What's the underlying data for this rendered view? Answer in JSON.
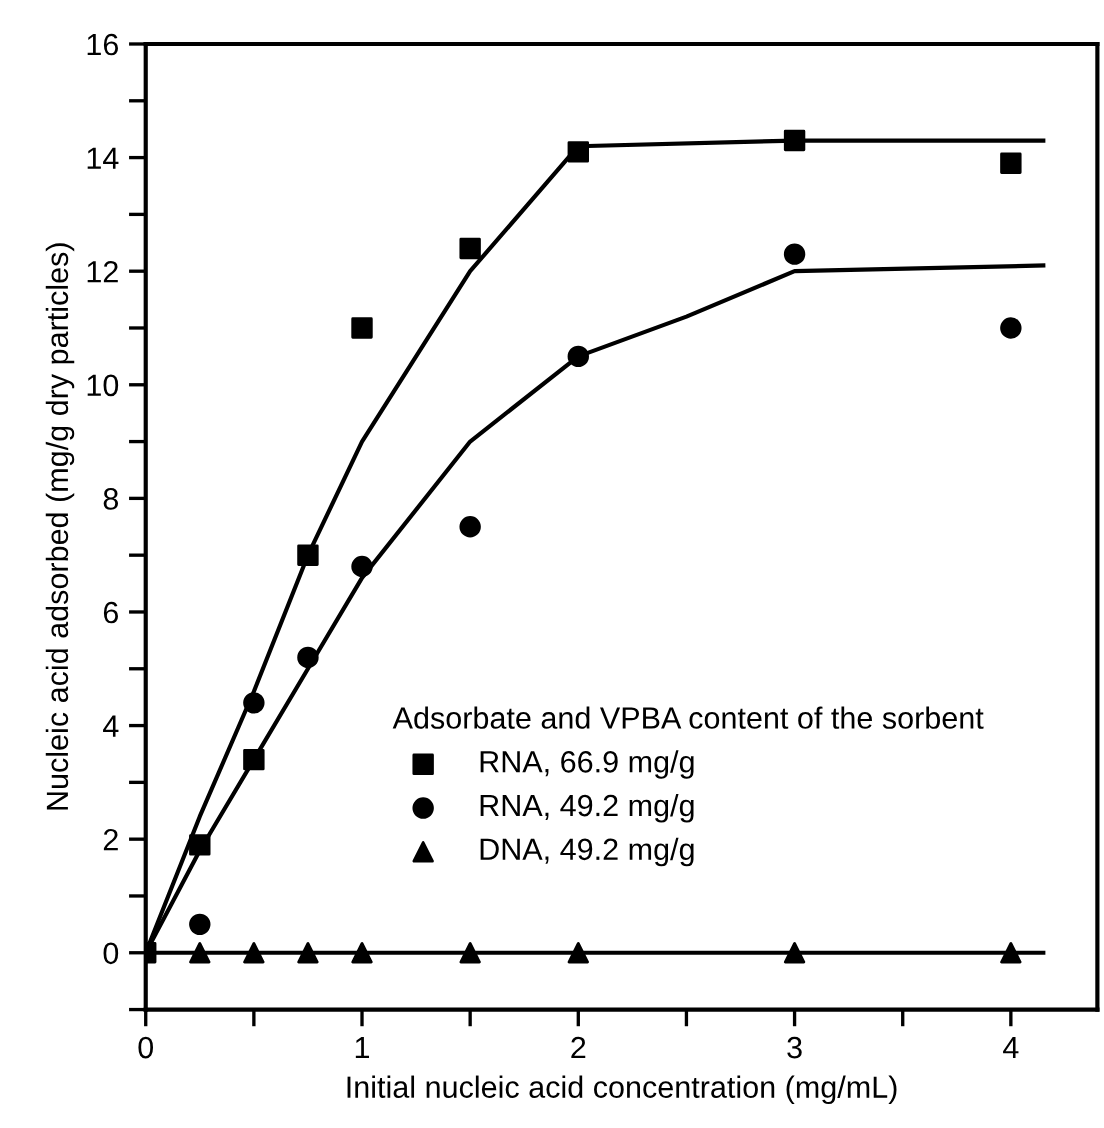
{
  "chart_data": {
    "type": "scatter",
    "xlabel": "Initial nucleic acid concentration (mg/mL)",
    "ylabel": "Nucleic acid adsorbed (mg/g dry particles)",
    "legend_title": "Adsorbate and VPBA content of the sorbent",
    "xlim": [
      0,
      4.4
    ],
    "xticks": [
      0,
      {
        "value": 0.5,
        "label": null
      },
      1,
      {
        "value": 1.5,
        "label": null
      },
      2,
      {
        "value": 2.5,
        "label": null
      },
      3,
      {
        "value": 3.5,
        "label": null
      },
      4
    ],
    "ylim": [
      -1,
      16
    ],
    "yticks": [
      {
        "value": -1,
        "label": null
      },
      0,
      {
        "value": 1,
        "label": null
      },
      2,
      {
        "value": 3,
        "label": null
      },
      4,
      {
        "value": 5,
        "label": null
      },
      6,
      {
        "value": 7,
        "label": null
      },
      8,
      {
        "value": 9,
        "label": null
      },
      10,
      {
        "value": 11,
        "label": null
      },
      12,
      {
        "value": 13,
        "label": null
      },
      14,
      {
        "value": 15,
        "label": null
      },
      16
    ],
    "grid": false,
    "legend": "bottom",
    "series": [
      {
        "name": "RNA, 66.9 mg/g",
        "color": "#000000",
        "marker": "square",
        "x": [
          0,
          0.25,
          0.5,
          0.75,
          1,
          1.5,
          2,
          3,
          4
        ],
        "values": [
          0,
          1.9,
          3.4,
          7.0,
          11.0,
          12.4,
          14.1,
          14.3,
          13.9
        ]
      },
      {
        "name": "RNA, 49.2 mg/g",
        "color": "#000000",
        "marker": "circle",
        "x": [
          0.25,
          0.5,
          0.75,
          1,
          1.5,
          2,
          3,
          4
        ],
        "values": [
          0.5,
          4.4,
          5.2,
          6.8,
          7.5,
          10.5,
          12.3,
          11.0
        ]
      },
      {
        "name": "DNA, 49.2 mg/g",
        "color": "#000000",
        "marker": "triangle",
        "x": [
          0.25,
          0.5,
          0.75,
          1,
          1.5,
          2,
          3,
          4
        ],
        "values": [
          0,
          0,
          0,
          0,
          0,
          0,
          0,
          0
        ]
      },
      {
        "type": "line",
        "color": "#000000",
        "marker": "none",
        "line_style": "solid",
        "x": [
          0,
          0.25,
          0.5,
          0.75,
          1,
          1.5,
          2,
          3,
          4.15
        ],
        "values": [
          0,
          2.4,
          4.6,
          7.0,
          9.0,
          12.0,
          14.2,
          14.3,
          14.3
        ]
      },
      {
        "type": "line",
        "color": "#000000",
        "marker": "none",
        "line_style": "solid",
        "x": [
          0,
          0.25,
          0.5,
          0.75,
          1,
          1.5,
          2,
          2.5,
          3,
          4.15
        ],
        "values": [
          0,
          1.8,
          3.4,
          5.0,
          6.6,
          9.0,
          10.5,
          11.2,
          12.0,
          12.1
        ]
      },
      {
        "type": "line",
        "color": "#000000",
        "marker": "none",
        "line_style": "solid",
        "x": [
          0,
          4.15
        ],
        "values": [
          0,
          0
        ]
      }
    ]
  }
}
